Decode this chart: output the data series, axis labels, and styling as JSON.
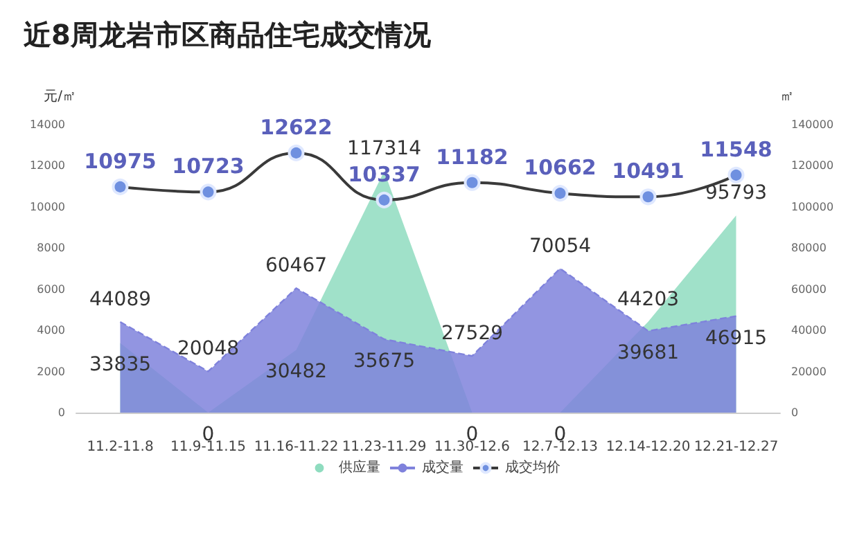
{
  "chart_data": {
    "type": "area",
    "title": "近8周龙岩市区商品住宅成交情况",
    "ylabel": "元/㎡",
    "y2label": "㎡",
    "categories": [
      "11.2-11.8",
      "11.9-11.15",
      "11.16-11.22",
      "11.23-11.29",
      "11.30-12.6",
      "12.7-12.13",
      "12.14-12.20",
      "12.21-12.27"
    ],
    "series": [
      {
        "name": "供应量",
        "axis": "y2",
        "color": "#8fdcbf",
        "values": [
          33835,
          0,
          30482,
          117314,
          0,
          0,
          44203,
          95793
        ]
      },
      {
        "name": "成交量",
        "axis": "y2",
        "color": "#7f82dc",
        "line_style": "dashed",
        "values": [
          44089,
          20048,
          60467,
          35675,
          27529,
          70054,
          39681,
          46915
        ]
      },
      {
        "name": "成交均价",
        "type": "line",
        "color": "#3a3a3a",
        "marker": "circle",
        "values": [
          10975,
          10723,
          12622,
          10337,
          11182,
          10662,
          10491,
          11548
        ]
      }
    ],
    "ylim": [
      0,
      14000
    ],
    "yticks": [
      0,
      2000,
      4000,
      6000,
      8000,
      10000,
      12000,
      14000
    ],
    "y2lim": [
      0,
      140000
    ],
    "y2ticks": [
      0,
      20000,
      40000,
      60000,
      80000,
      100000,
      120000,
      140000
    ],
    "data_labels": true,
    "grid": false,
    "legend": "bottom"
  }
}
